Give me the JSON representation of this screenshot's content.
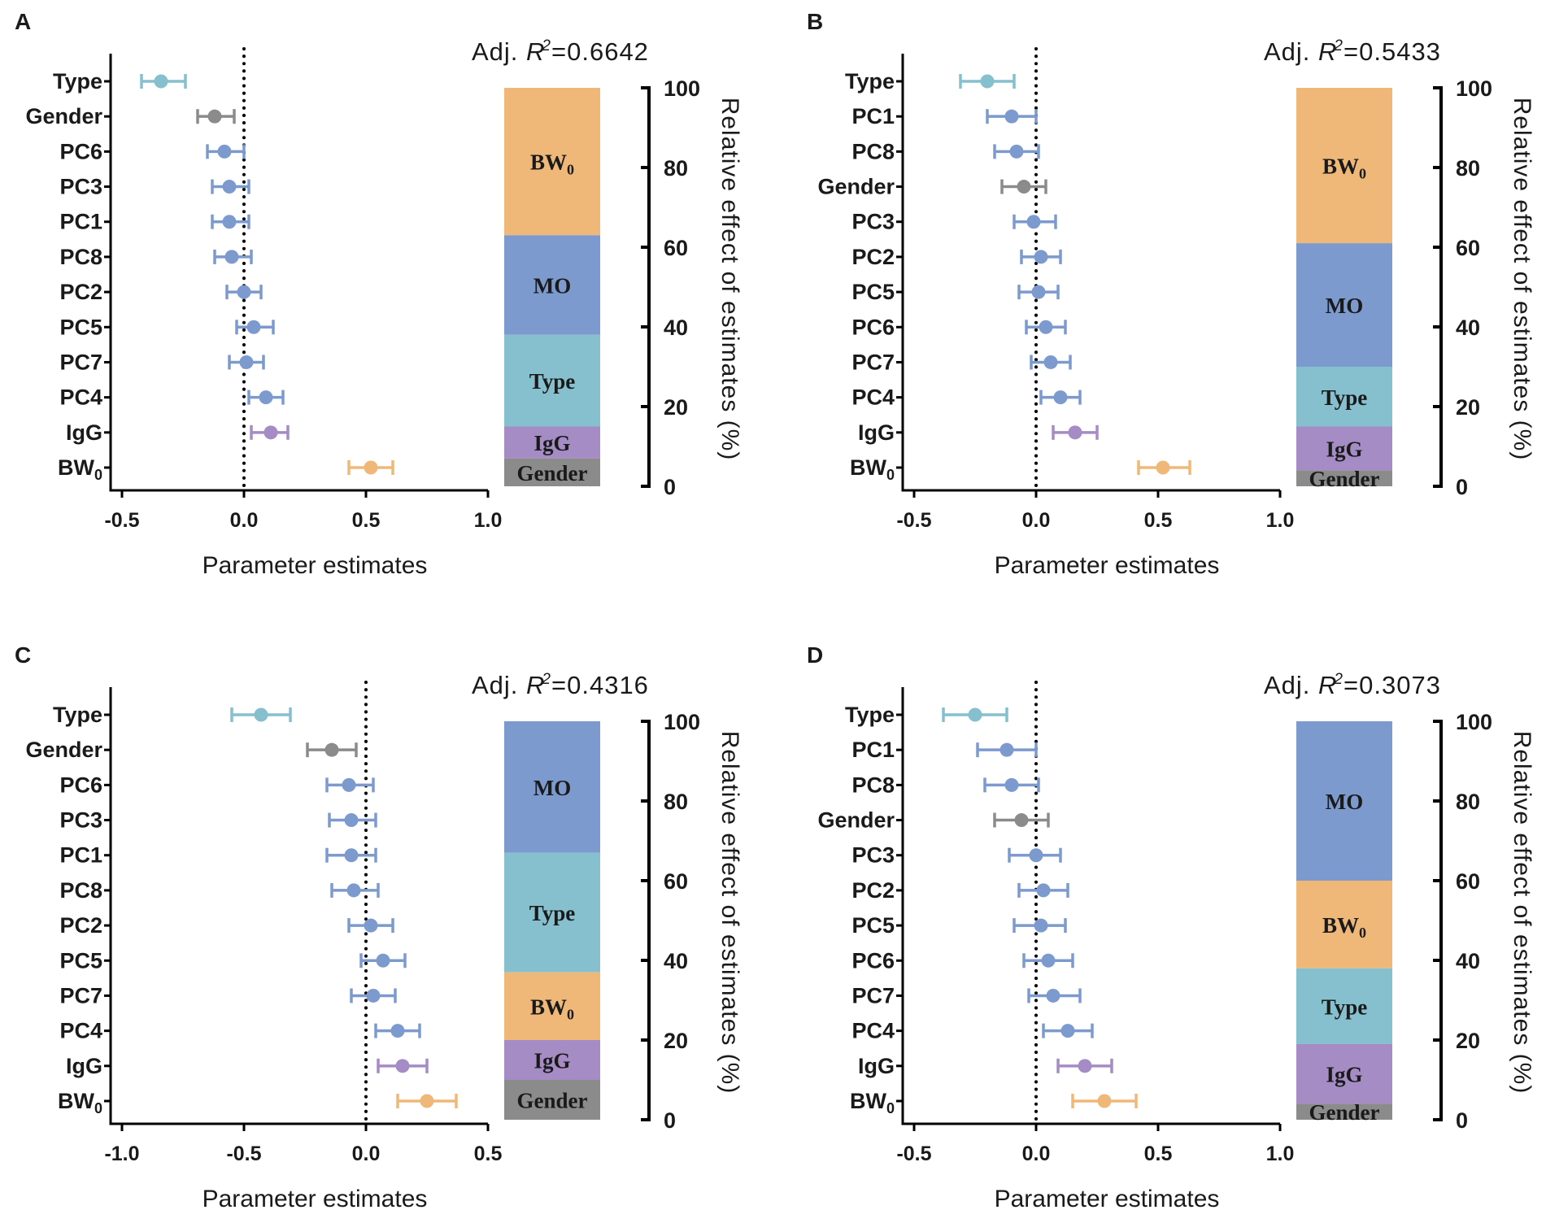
{
  "figure": {
    "colors": {
      "BW0": "#efb879",
      "MO": "#7c9acd",
      "Type": "#86bfcd",
      "IgG": "#a58cc4",
      "Gender": "#8b8b8b",
      "PC": "#7c9acd",
      "axis": "#000000"
    }
  },
  "chart_data": [
    {
      "panel": "A",
      "type": "errorbar",
      "title": "Adj. R2=0.6642",
      "r2_prefix": "Adj. ",
      "r2_symbol": "R",
      "r2_superscript": "2",
      "r2_value": "=0.6642",
      "xlabel": "Parameter estimates",
      "xlim": [
        -0.5,
        1.0
      ],
      "xticks": [
        "-0.5",
        "0.0",
        "0.5",
        "1.0"
      ],
      "xtick_values": [
        -0.5,
        0.0,
        0.5,
        1.0
      ],
      "points": [
        {
          "label": "Type",
          "sub": "",
          "group": "Type",
          "estimate": -0.34,
          "lower": -0.42,
          "upper": -0.24
        },
        {
          "label": "Gender",
          "sub": "",
          "group": "Gender",
          "estimate": -0.12,
          "lower": -0.19,
          "upper": -0.04
        },
        {
          "label": "PC6",
          "sub": "",
          "group": "PC",
          "estimate": -0.08,
          "lower": -0.15,
          "upper": 0.0
        },
        {
          "label": "PC3",
          "sub": "",
          "group": "PC",
          "estimate": -0.06,
          "lower": -0.13,
          "upper": 0.02
        },
        {
          "label": "PC1",
          "sub": "",
          "group": "PC",
          "estimate": -0.06,
          "lower": -0.13,
          "upper": 0.02
        },
        {
          "label": "PC8",
          "sub": "",
          "group": "PC",
          "estimate": -0.05,
          "lower": -0.12,
          "upper": 0.03
        },
        {
          "label": "PC2",
          "sub": "",
          "group": "PC",
          "estimate": 0.0,
          "lower": -0.07,
          "upper": 0.07
        },
        {
          "label": "PC5",
          "sub": "",
          "group": "PC",
          "estimate": 0.04,
          "lower": -0.03,
          "upper": 0.12
        },
        {
          "label": "PC7",
          "sub": "",
          "group": "PC",
          "estimate": 0.01,
          "lower": -0.06,
          "upper": 0.08
        },
        {
          "label": "PC4",
          "sub": "",
          "group": "PC",
          "estimate": 0.09,
          "lower": 0.02,
          "upper": 0.16
        },
        {
          "label": "IgG",
          "sub": "",
          "group": "IgG",
          "estimate": 0.11,
          "lower": 0.03,
          "upper": 0.18
        },
        {
          "label": "BW",
          "sub": "0",
          "group": "BW0",
          "estimate": 0.52,
          "lower": 0.43,
          "upper": 0.61
        }
      ],
      "relative_effect": {
        "ylabel": "Relative effect of estimates (%)",
        "ylim": [
          0,
          100
        ],
        "yticks": [
          "0",
          "20",
          "40",
          "60",
          "80",
          "100"
        ],
        "segments_top_to_bottom": [
          {
            "label": "BW",
            "sub": "0",
            "group": "BW0",
            "percent": 37
          },
          {
            "label": "MO",
            "sub": "",
            "group": "MO",
            "percent": 25
          },
          {
            "label": "Type",
            "sub": "",
            "group": "Type",
            "percent": 23
          },
          {
            "label": "IgG",
            "sub": "",
            "group": "IgG",
            "percent": 8
          },
          {
            "label": "Gender",
            "sub": "",
            "group": "Gender",
            "percent": 7
          }
        ]
      }
    },
    {
      "panel": "B",
      "type": "errorbar",
      "title": "Adj. R2=0.5433",
      "r2_prefix": "Adj. ",
      "r2_symbol": "R",
      "r2_superscript": "2",
      "r2_value": "=0.5433",
      "xlabel": "Parameter estimates",
      "xlim": [
        -0.5,
        1.0
      ],
      "xticks": [
        "-0.5",
        "0.0",
        "0.5",
        "1.0"
      ],
      "xtick_values": [
        -0.5,
        0.0,
        0.5,
        1.0
      ],
      "points": [
        {
          "label": "Type",
          "sub": "",
          "group": "Type",
          "estimate": -0.2,
          "lower": -0.31,
          "upper": -0.09
        },
        {
          "label": "PC1",
          "sub": "",
          "group": "PC",
          "estimate": -0.1,
          "lower": -0.2,
          "upper": 0.0
        },
        {
          "label": "PC8",
          "sub": "",
          "group": "PC",
          "estimate": -0.08,
          "lower": -0.17,
          "upper": 0.01
        },
        {
          "label": "Gender",
          "sub": "",
          "group": "Gender",
          "estimate": -0.05,
          "lower": -0.14,
          "upper": 0.04
        },
        {
          "label": "PC3",
          "sub": "",
          "group": "PC",
          "estimate": -0.01,
          "lower": -0.09,
          "upper": 0.08
        },
        {
          "label": "PC2",
          "sub": "",
          "group": "PC",
          "estimate": 0.02,
          "lower": -0.06,
          "upper": 0.1
        },
        {
          "label": "PC5",
          "sub": "",
          "group": "PC",
          "estimate": 0.01,
          "lower": -0.07,
          "upper": 0.09
        },
        {
          "label": "PC6",
          "sub": "",
          "group": "PC",
          "estimate": 0.04,
          "lower": -0.04,
          "upper": 0.12
        },
        {
          "label": "PC7",
          "sub": "",
          "group": "PC",
          "estimate": 0.06,
          "lower": -0.02,
          "upper": 0.14
        },
        {
          "label": "PC4",
          "sub": "",
          "group": "PC",
          "estimate": 0.1,
          "lower": 0.02,
          "upper": 0.18
        },
        {
          "label": "IgG",
          "sub": "",
          "group": "IgG",
          "estimate": 0.16,
          "lower": 0.07,
          "upper": 0.25
        },
        {
          "label": "BW",
          "sub": "0",
          "group": "BW0",
          "estimate": 0.52,
          "lower": 0.42,
          "upper": 0.63
        }
      ],
      "relative_effect": {
        "ylabel": "Relative effect of estimates (%)",
        "ylim": [
          0,
          100
        ],
        "yticks": [
          "0",
          "20",
          "40",
          "60",
          "80",
          "100"
        ],
        "segments_top_to_bottom": [
          {
            "label": "BW",
            "sub": "0",
            "group": "BW0",
            "percent": 39
          },
          {
            "label": "MO",
            "sub": "",
            "group": "MO",
            "percent": 31
          },
          {
            "label": "Type",
            "sub": "",
            "group": "Type",
            "percent": 15
          },
          {
            "label": "IgG",
            "sub": "",
            "group": "IgG",
            "percent": 11
          },
          {
            "label": "Gender",
            "sub": "",
            "group": "Gender",
            "percent": 4
          }
        ]
      }
    },
    {
      "panel": "C",
      "type": "errorbar",
      "title": "Adj. R2=0.4316",
      "r2_prefix": "Adj. ",
      "r2_symbol": "R",
      "r2_superscript": "2",
      "r2_value": "=0.4316",
      "xlabel": "Parameter estimates",
      "xlim": [
        -1.0,
        0.5
      ],
      "xticks": [
        "-1.0",
        "-0.5",
        "0.0",
        "0.5"
      ],
      "xtick_values": [
        -1.0,
        -0.5,
        0.0,
        0.5
      ],
      "points": [
        {
          "label": "Type",
          "sub": "",
          "group": "Type",
          "estimate": -0.43,
          "lower": -0.55,
          "upper": -0.31
        },
        {
          "label": "Gender",
          "sub": "",
          "group": "Gender",
          "estimate": -0.14,
          "lower": -0.24,
          "upper": -0.04
        },
        {
          "label": "PC6",
          "sub": "",
          "group": "PC",
          "estimate": -0.07,
          "lower": -0.16,
          "upper": 0.03
        },
        {
          "label": "PC3",
          "sub": "",
          "group": "PC",
          "estimate": -0.06,
          "lower": -0.15,
          "upper": 0.04
        },
        {
          "label": "PC1",
          "sub": "",
          "group": "PC",
          "estimate": -0.06,
          "lower": -0.16,
          "upper": 0.04
        },
        {
          "label": "PC8",
          "sub": "",
          "group": "PC",
          "estimate": -0.05,
          "lower": -0.14,
          "upper": 0.05
        },
        {
          "label": "PC2",
          "sub": "",
          "group": "PC",
          "estimate": 0.02,
          "lower": -0.07,
          "upper": 0.11
        },
        {
          "label": "PC5",
          "sub": "",
          "group": "PC",
          "estimate": 0.07,
          "lower": -0.02,
          "upper": 0.16
        },
        {
          "label": "PC7",
          "sub": "",
          "group": "PC",
          "estimate": 0.03,
          "lower": -0.06,
          "upper": 0.12
        },
        {
          "label": "PC4",
          "sub": "",
          "group": "PC",
          "estimate": 0.13,
          "lower": 0.04,
          "upper": 0.22
        },
        {
          "label": "IgG",
          "sub": "",
          "group": "IgG",
          "estimate": 0.15,
          "lower": 0.05,
          "upper": 0.25
        },
        {
          "label": "BW",
          "sub": "0",
          "group": "BW0",
          "estimate": 0.25,
          "lower": 0.13,
          "upper": 0.37
        }
      ],
      "relative_effect": {
        "ylabel": "Relative effect of estimates (%)",
        "ylim": [
          0,
          100
        ],
        "yticks": [
          "0",
          "20",
          "40",
          "60",
          "80",
          "100"
        ],
        "segments_top_to_bottom": [
          {
            "label": "MO",
            "sub": "",
            "group": "MO",
            "percent": 33
          },
          {
            "label": "Type",
            "sub": "",
            "group": "Type",
            "percent": 30
          },
          {
            "label": "BW",
            "sub": "0",
            "group": "BW0",
            "percent": 17
          },
          {
            "label": "IgG",
            "sub": "",
            "group": "IgG",
            "percent": 10
          },
          {
            "label": "Gender",
            "sub": "",
            "group": "Gender",
            "percent": 10
          }
        ]
      }
    },
    {
      "panel": "D",
      "type": "errorbar",
      "title": "Adj. R2=0.3073",
      "r2_prefix": "Adj. ",
      "r2_symbol": "R",
      "r2_superscript": "2",
      "r2_value": "=0.3073",
      "xlabel": "Parameter estimates",
      "xlim": [
        -0.5,
        1.0
      ],
      "xticks": [
        "-0.5",
        "0.0",
        "0.5",
        "1.0"
      ],
      "xtick_values": [
        -0.5,
        0.0,
        0.5,
        1.0
      ],
      "points": [
        {
          "label": "Type",
          "sub": "",
          "group": "Type",
          "estimate": -0.25,
          "lower": -0.38,
          "upper": -0.12
        },
        {
          "label": "PC1",
          "sub": "",
          "group": "PC",
          "estimate": -0.12,
          "lower": -0.24,
          "upper": 0.0
        },
        {
          "label": "PC8",
          "sub": "",
          "group": "PC",
          "estimate": -0.1,
          "lower": -0.21,
          "upper": 0.01
        },
        {
          "label": "Gender",
          "sub": "",
          "group": "Gender",
          "estimate": -0.06,
          "lower": -0.17,
          "upper": 0.05
        },
        {
          "label": "PC3",
          "sub": "",
          "group": "PC",
          "estimate": 0.0,
          "lower": -0.11,
          "upper": 0.1
        },
        {
          "label": "PC2",
          "sub": "",
          "group": "PC",
          "estimate": 0.03,
          "lower": -0.07,
          "upper": 0.13
        },
        {
          "label": "PC5",
          "sub": "",
          "group": "PC",
          "estimate": 0.02,
          "lower": -0.09,
          "upper": 0.12
        },
        {
          "label": "PC6",
          "sub": "",
          "group": "PC",
          "estimate": 0.05,
          "lower": -0.05,
          "upper": 0.15
        },
        {
          "label": "PC7",
          "sub": "",
          "group": "PC",
          "estimate": 0.07,
          "lower": -0.03,
          "upper": 0.18
        },
        {
          "label": "PC4",
          "sub": "",
          "group": "PC",
          "estimate": 0.13,
          "lower": 0.03,
          "upper": 0.23
        },
        {
          "label": "IgG",
          "sub": "",
          "group": "IgG",
          "estimate": 0.2,
          "lower": 0.09,
          "upper": 0.31
        },
        {
          "label": "BW",
          "sub": "0",
          "group": "BW0",
          "estimate": 0.28,
          "lower": 0.15,
          "upper": 0.41
        }
      ],
      "relative_effect": {
        "ylabel": "Relative effect of estimates (%)",
        "ylim": [
          0,
          100
        ],
        "yticks": [
          "0",
          "20",
          "40",
          "60",
          "80",
          "100"
        ],
        "segments_top_to_bottom": [
          {
            "label": "MO",
            "sub": "",
            "group": "MO",
            "percent": 40
          },
          {
            "label": "BW",
            "sub": "0",
            "group": "BW0",
            "percent": 22
          },
          {
            "label": "Type",
            "sub": "",
            "group": "Type",
            "percent": 19
          },
          {
            "label": "IgG",
            "sub": "",
            "group": "IgG",
            "percent": 15
          },
          {
            "label": "Gender",
            "sub": "",
            "group": "Gender",
            "percent": 4
          }
        ]
      }
    }
  ]
}
